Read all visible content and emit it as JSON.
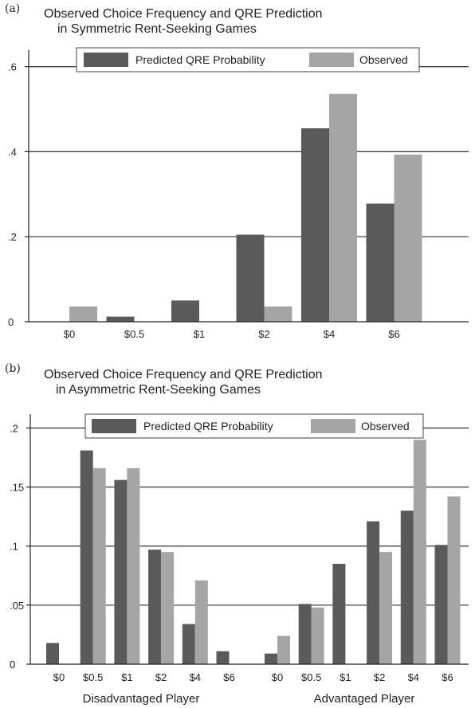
{
  "colors": {
    "predicted": "#5a5a5a",
    "observed": "#a5a5a5",
    "grid": "#444444",
    "axis": "#222222"
  },
  "chart_data": [
    {
      "type": "bar",
      "panel": "(a)",
      "title_line1": "Observed Choice Frequency and QRE Prediction",
      "title_line2": "in Symmetric Rent-Seeking Games",
      "categories": [
        "$0",
        "$0.5",
        "$1",
        "$2",
        "$4",
        "$6"
      ],
      "series": [
        {
          "name": "Predicted QRE Probability",
          "values": [
            0.0,
            0.012,
            0.05,
            0.205,
            0.455,
            0.278
          ]
        },
        {
          "name": "Observed",
          "values": [
            0.036,
            0.0,
            0.0,
            0.036,
            0.536,
            0.393
          ]
        }
      ],
      "ylim": [
        0,
        0.62
      ],
      "yticks": [
        0,
        0.2,
        0.4,
        0.6
      ],
      "ytick_labels": [
        "0",
        ".2",
        ".4",
        ".6"
      ],
      "grid": true,
      "legend_position": "top"
    },
    {
      "type": "bar",
      "panel": "(b)",
      "title_line1": "Observed Choice Frequency and QRE Prediction",
      "title_line2": "in Asymmetric Rent-Seeking Games",
      "groups": [
        {
          "label": "Disadvantaged Player",
          "categories": [
            "$0",
            "$0.5",
            "$1",
            "$2",
            "$4",
            "$6"
          ],
          "predicted": [
            0.018,
            0.181,
            0.156,
            0.097,
            0.034,
            0.011
          ],
          "observed": [
            0.0,
            0.166,
            0.166,
            0.095,
            0.071,
            0.0
          ]
        },
        {
          "label": "Advantaged Player",
          "categories": [
            "$0",
            "$0.5",
            "$1",
            "$2",
            "$4",
            "$6"
          ],
          "predicted": [
            0.009,
            0.051,
            0.085,
            0.121,
            0.13,
            0.101
          ],
          "observed": [
            0.024,
            0.048,
            0.0,
            0.095,
            0.19,
            0.142
          ]
        }
      ],
      "series_names": [
        "Predicted QRE Probability",
        "Observed"
      ],
      "ylim": [
        0,
        0.205
      ],
      "yticks": [
        0,
        0.05,
        0.1,
        0.15,
        0.2
      ],
      "ytick_labels": [
        "0",
        ".05",
        ".1",
        ".15",
        ".2"
      ],
      "grid": true,
      "legend_position": "top"
    }
  ]
}
